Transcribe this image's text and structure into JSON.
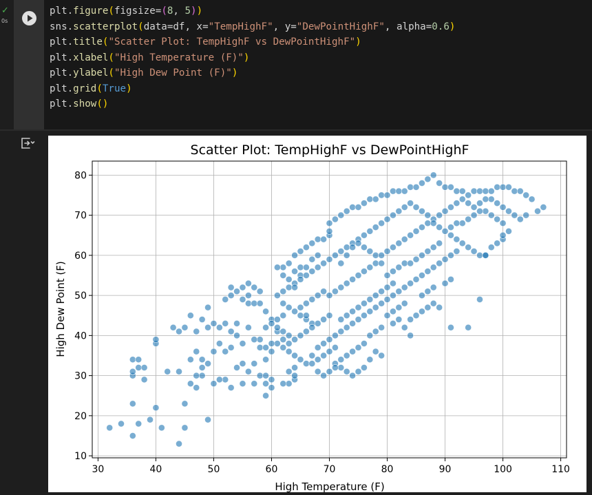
{
  "cell": {
    "status_icon": "check-icon",
    "exec_time": "0s",
    "run_button_icon": "play-icon",
    "output_icon": "output-toggle-icon",
    "code_lines": [
      "plt.figure(figsize=(8, 5))",
      "sns.scatterplot(data=df, x=\"TempHighF\", y=\"DewPointHighF\", alpha=0.6)",
      "plt.title(\"Scatter Plot: TempHighF vs DewPointHighF\")",
      "plt.xlabel(\"High Temperature (F)\")",
      "plt.ylabel(\"High Dew Point (F)\")",
      "plt.grid(True)",
      "plt.show()"
    ]
  },
  "colors": {
    "marker": "#1f77b4",
    "status": "#4caf50",
    "background": "#1e1e1e"
  },
  "chart_data": {
    "type": "scatter",
    "title": "Scatter Plot: TempHighF vs DewPointHighF",
    "xlabel": "High Temperature (F)",
    "ylabel": "High Dew Point (F)",
    "xlim": [
      29,
      111
    ],
    "ylim": [
      9.5,
      83.5
    ],
    "xticks": [
      30,
      40,
      50,
      60,
      70,
      80,
      90,
      100,
      110
    ],
    "yticks": [
      10,
      20,
      30,
      40,
      50,
      60,
      70,
      80
    ],
    "grid": true,
    "alpha": 0.6,
    "points": [
      [
        32,
        17
      ],
      [
        34,
        18
      ],
      [
        36,
        15
      ],
      [
        37,
        18
      ],
      [
        39,
        19
      ],
      [
        41,
        17
      ],
      [
        44,
        13
      ],
      [
        45,
        17
      ],
      [
        40,
        22
      ],
      [
        36,
        23
      ],
      [
        49,
        19
      ],
      [
        45,
        23
      ],
      [
        47,
        27
      ],
      [
        50,
        28
      ],
      [
        36,
        30
      ],
      [
        36,
        31
      ],
      [
        38,
        29
      ],
      [
        37,
        32
      ],
      [
        38,
        32
      ],
      [
        36,
        34
      ],
      [
        37,
        34
      ],
      [
        40,
        38
      ],
      [
        40,
        39
      ],
      [
        42,
        31
      ],
      [
        44,
        31
      ],
      [
        43,
        42
      ],
      [
        45,
        42
      ],
      [
        44,
        41
      ],
      [
        47,
        41
      ],
      [
        49,
        42
      ],
      [
        48,
        44
      ],
      [
        46,
        45
      ],
      [
        47,
        36
      ],
      [
        48,
        34
      ],
      [
        46,
        34
      ],
      [
        50,
        36
      ],
      [
        51,
        38
      ],
      [
        52,
        36
      ],
      [
        53,
        37
      ],
      [
        51,
        42
      ],
      [
        52,
        43
      ],
      [
        50,
        43
      ],
      [
        49,
        47
      ],
      [
        52,
        49
      ],
      [
        53,
        50
      ],
      [
        54,
        51
      ],
      [
        55,
        49
      ],
      [
        56,
        50
      ],
      [
        53,
        52
      ],
      [
        55,
        52
      ],
      [
        56,
        53
      ],
      [
        57,
        52
      ],
      [
        58,
        51
      ],
      [
        56,
        48
      ],
      [
        57,
        48
      ],
      [
        58,
        48
      ],
      [
        59,
        46
      ],
      [
        60,
        44
      ],
      [
        59,
        42
      ],
      [
        61,
        41
      ],
      [
        58,
        39
      ],
      [
        57,
        39
      ],
      [
        58,
        37
      ],
      [
        60,
        36
      ],
      [
        59,
        34
      ],
      [
        57,
        33
      ],
      [
        55,
        33
      ],
      [
        54,
        32
      ],
      [
        56,
        31
      ],
      [
        58,
        30
      ],
      [
        59,
        30
      ],
      [
        60,
        29
      ],
      [
        59,
        28
      ],
      [
        60,
        27
      ],
      [
        59,
        25
      ],
      [
        57,
        28
      ],
      [
        55,
        28
      ],
      [
        53,
        27
      ],
      [
        52,
        29
      ],
      [
        51,
        29
      ],
      [
        48,
        30
      ],
      [
        48,
        32
      ],
      [
        49,
        33
      ],
      [
        46,
        28
      ],
      [
        47,
        30
      ],
      [
        55,
        38
      ],
      [
        54,
        40
      ],
      [
        56,
        42
      ],
      [
        54,
        43
      ],
      [
        53,
        41
      ],
      [
        62,
        57
      ],
      [
        61,
        57
      ],
      [
        63,
        58
      ],
      [
        62,
        55
      ],
      [
        63,
        54
      ],
      [
        64,
        56
      ],
      [
        65,
        57
      ],
      [
        64,
        60
      ],
      [
        65,
        61
      ],
      [
        66,
        62
      ],
      [
        67,
        63
      ],
      [
        68,
        64
      ],
      [
        69,
        64
      ],
      [
        70,
        65
      ],
      [
        70,
        66
      ],
      [
        68,
        60
      ],
      [
        67,
        59
      ],
      [
        66,
        57
      ],
      [
        65,
        55
      ],
      [
        64,
        53
      ],
      [
        63,
        52
      ],
      [
        62,
        51
      ],
      [
        61,
        50
      ],
      [
        62,
        48
      ],
      [
        63,
        47
      ],
      [
        64,
        46
      ],
      [
        65,
        45
      ],
      [
        66,
        44
      ],
      [
        67,
        43
      ],
      [
        66,
        41
      ],
      [
        65,
        40
      ],
      [
        64,
        39
      ],
      [
        63,
        38
      ],
      [
        62,
        37
      ],
      [
        63,
        36
      ],
      [
        64,
        35
      ],
      [
        65,
        34
      ],
      [
        66,
        33
      ],
      [
        64,
        32
      ],
      [
        63,
        31
      ],
      [
        64,
        29
      ],
      [
        63,
        28
      ],
      [
        62,
        28
      ],
      [
        64,
        30
      ],
      [
        67,
        35
      ],
      [
        68,
        37
      ],
      [
        69,
        38
      ],
      [
        70,
        39
      ],
      [
        71,
        40
      ],
      [
        72,
        41
      ],
      [
        73,
        42
      ],
      [
        74,
        43
      ],
      [
        75,
        44
      ],
      [
        76,
        45
      ],
      [
        77,
        46
      ],
      [
        78,
        47
      ],
      [
        79,
        48
      ],
      [
        80,
        49
      ],
      [
        81,
        50
      ],
      [
        82,
        51
      ],
      [
        83,
        52
      ],
      [
        84,
        53
      ],
      [
        85,
        54
      ],
      [
        86,
        55
      ],
      [
        87,
        56
      ],
      [
        88,
        57
      ],
      [
        89,
        58
      ],
      [
        90,
        59
      ],
      [
        91,
        60
      ],
      [
        92,
        61
      ],
      [
        70,
        68
      ],
      [
        71,
        69
      ],
      [
        72,
        70
      ],
      [
        73,
        71
      ],
      [
        74,
        72
      ],
      [
        75,
        72
      ],
      [
        76,
        73
      ],
      [
        77,
        74
      ],
      [
        78,
        74
      ],
      [
        79,
        75
      ],
      [
        80,
        75
      ],
      [
        81,
        76
      ],
      [
        82,
        76
      ],
      [
        83,
        76
      ],
      [
        84,
        77
      ],
      [
        85,
        77
      ],
      [
        86,
        78
      ],
      [
        87,
        79
      ],
      [
        88,
        80
      ],
      [
        89,
        78
      ],
      [
        90,
        77
      ],
      [
        91,
        77
      ],
      [
        92,
        76
      ],
      [
        93,
        76
      ],
      [
        94,
        75
      ],
      [
        95,
        76
      ],
      [
        96,
        76
      ],
      [
        97,
        76
      ],
      [
        98,
        76
      ],
      [
        99,
        77
      ],
      [
        100,
        77
      ],
      [
        101,
        77
      ],
      [
        102,
        76
      ],
      [
        103,
        76
      ],
      [
        104,
        75
      ],
      [
        105,
        74
      ],
      [
        106,
        71
      ],
      [
        107,
        72
      ],
      [
        104,
        70
      ],
      [
        103,
        69
      ],
      [
        102,
        70
      ],
      [
        101,
        71
      ],
      [
        100,
        72
      ],
      [
        99,
        73
      ],
      [
        98,
        74
      ],
      [
        97,
        74
      ],
      [
        96,
        73
      ],
      [
        95,
        72
      ],
      [
        94,
        73
      ],
      [
        93,
        74
      ],
      [
        92,
        73
      ],
      [
        91,
        72
      ],
      [
        90,
        71
      ],
      [
        89,
        70
      ],
      [
        88,
        69
      ],
      [
        87,
        70
      ],
      [
        86,
        71
      ],
      [
        85,
        72
      ],
      [
        84,
        73
      ],
      [
        83,
        72
      ],
      [
        82,
        71
      ],
      [
        81,
        70
      ],
      [
        80,
        69
      ],
      [
        79,
        68
      ],
      [
        78,
        67
      ],
      [
        77,
        66
      ],
      [
        76,
        65
      ],
      [
        75,
        64
      ],
      [
        74,
        63
      ],
      [
        73,
        62
      ],
      [
        72,
        61
      ],
      [
        71,
        60
      ],
      [
        70,
        59
      ],
      [
        69,
        58
      ],
      [
        68,
        57
      ],
      [
        67,
        56
      ],
      [
        66,
        55
      ],
      [
        65,
        54
      ],
      [
        64,
        52
      ],
      [
        72,
        58
      ],
      [
        73,
        60
      ],
      [
        74,
        62
      ],
      [
        75,
        63
      ],
      [
        76,
        62
      ],
      [
        77,
        61
      ],
      [
        78,
        60
      ],
      [
        79,
        60
      ],
      [
        80,
        61
      ],
      [
        81,
        62
      ],
      [
        82,
        63
      ],
      [
        83,
        64
      ],
      [
        84,
        65
      ],
      [
        85,
        66
      ],
      [
        86,
        67
      ],
      [
        87,
        68
      ],
      [
        88,
        68
      ],
      [
        89,
        67
      ],
      [
        90,
        66
      ],
      [
        91,
        65
      ],
      [
        92,
        64
      ],
      [
        93,
        63
      ],
      [
        94,
        62
      ],
      [
        95,
        61
      ],
      [
        96,
        60
      ],
      [
        97,
        60
      ],
      [
        98,
        62
      ],
      [
        99,
        63
      ],
      [
        100,
        64
      ],
      [
        101,
        66
      ],
      [
        100,
        68
      ],
      [
        99,
        69
      ],
      [
        98,
        70
      ],
      [
        97,
        71
      ],
      [
        96,
        71
      ],
      [
        95,
        70
      ],
      [
        94,
        69
      ],
      [
        93,
        68
      ],
      [
        92,
        68
      ],
      [
        91,
        67
      ],
      [
        80,
        55
      ],
      [
        81,
        56
      ],
      [
        82,
        57
      ],
      [
        83,
        58
      ],
      [
        84,
        58
      ],
      [
        85,
        59
      ],
      [
        86,
        60
      ],
      [
        87,
        61
      ],
      [
        88,
        62
      ],
      [
        89,
        63
      ],
      [
        80,
        45
      ],
      [
        81,
        46
      ],
      [
        82,
        47
      ],
      [
        83,
        48
      ],
      [
        84,
        44
      ],
      [
        85,
        45
      ],
      [
        86,
        46
      ],
      [
        87,
        47
      ],
      [
        88,
        48
      ],
      [
        86,
        50
      ],
      [
        84,
        40
      ],
      [
        83,
        42
      ],
      [
        82,
        44
      ],
      [
        81,
        43
      ],
      [
        79,
        42
      ],
      [
        78,
        41
      ],
      [
        77,
        40
      ],
      [
        76,
        38
      ],
      [
        75,
        37
      ],
      [
        74,
        36
      ],
      [
        73,
        35
      ],
      [
        72,
        34
      ],
      [
        71,
        33
      ],
      [
        72,
        32
      ],
      [
        73,
        31
      ],
      [
        74,
        30
      ],
      [
        75,
        31
      ],
      [
        76,
        32
      ],
      [
        77,
        34
      ],
      [
        78,
        36
      ],
      [
        79,
        35
      ],
      [
        71,
        37
      ],
      [
        70,
        36
      ],
      [
        69,
        35
      ],
      [
        68,
        34
      ],
      [
        67,
        33
      ],
      [
        68,
        31
      ],
      [
        69,
        30
      ],
      [
        70,
        31
      ],
      [
        71,
        32
      ],
      [
        72,
        44
      ],
      [
        73,
        45
      ],
      [
        74,
        46
      ],
      [
        75,
        47
      ],
      [
        76,
        48
      ],
      [
        77,
        49
      ],
      [
        78,
        50
      ],
      [
        79,
        51
      ],
      [
        80,
        52
      ],
      [
        81,
        53
      ],
      [
        70,
        50
      ],
      [
        71,
        51
      ],
      [
        72,
        52
      ],
      [
        73,
        53
      ],
      [
        74,
        54
      ],
      [
        75,
        55
      ],
      [
        76,
        56
      ],
      [
        77,
        57
      ],
      [
        78,
        58
      ],
      [
        79,
        58
      ],
      [
        70,
        45
      ],
      [
        69,
        44
      ],
      [
        68,
        43
      ],
      [
        67,
        42
      ],
      [
        66,
        45
      ],
      [
        65,
        47
      ],
      [
        66,
        48
      ],
      [
        67,
        49
      ],
      [
        68,
        50
      ],
      [
        69,
        51
      ],
      [
        62,
        45
      ],
      [
        61,
        44
      ],
      [
        60,
        43
      ],
      [
        61,
        42
      ],
      [
        62,
        41
      ],
      [
        63,
        40
      ],
      [
        62,
        39
      ],
      [
        61,
        38
      ],
      [
        60,
        38
      ],
      [
        59,
        37
      ],
      [
        96,
        49
      ],
      [
        91,
        42
      ],
      [
        94,
        42
      ],
      [
        97,
        60
      ],
      [
        100,
        65
      ],
      [
        89,
        47
      ],
      [
        90,
        53
      ],
      [
        91,
        54
      ],
      [
        88,
        52
      ],
      [
        87,
        51
      ]
    ]
  }
}
